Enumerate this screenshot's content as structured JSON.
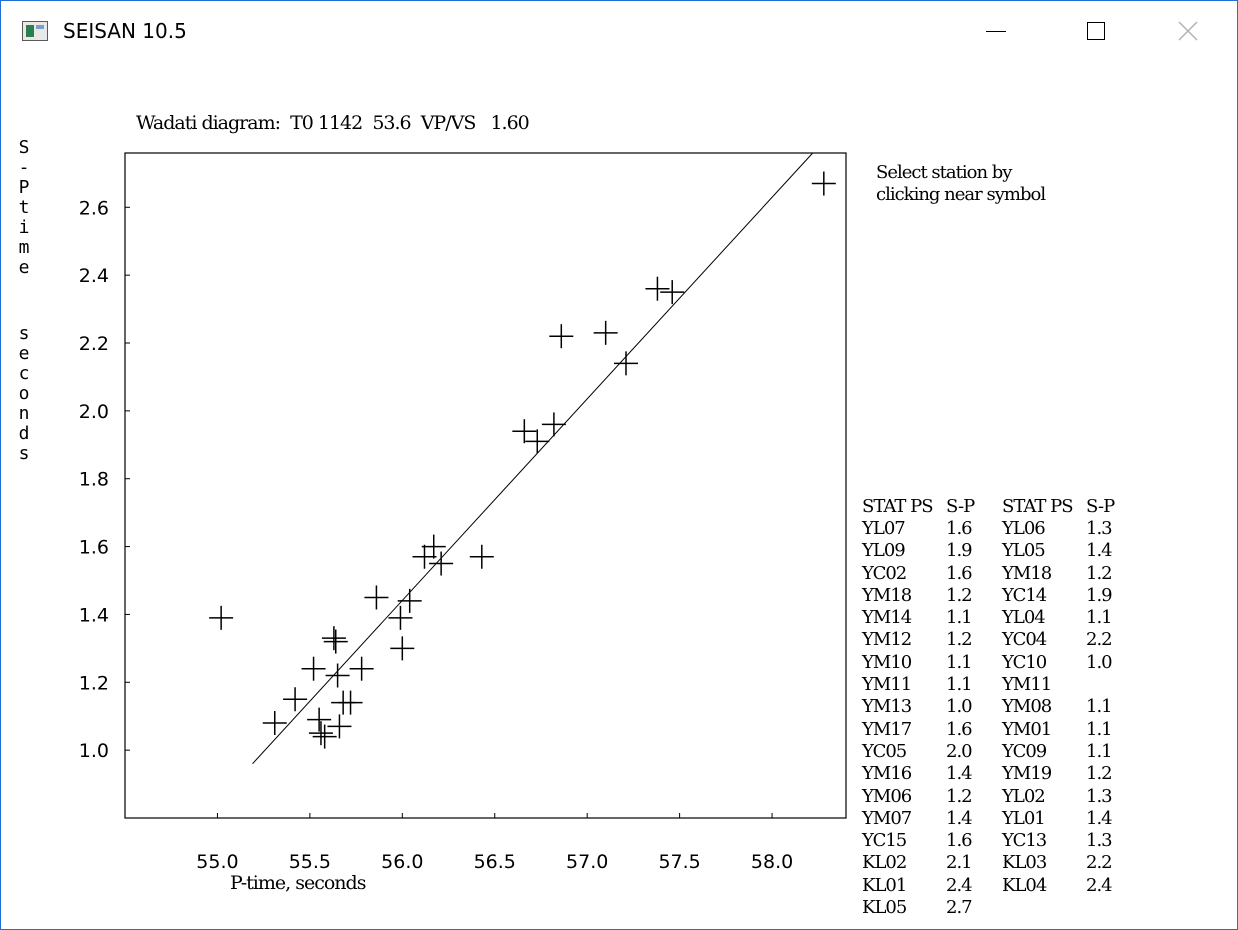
{
  "window": {
    "title": "SEISAN 10.5"
  },
  "header_text": "Wadati diagram:  T0 1142  53.6  VP/VS   1.60",
  "instruction_text": "Select station by\nclicking near symbol",
  "chart_data": {
    "type": "scatter",
    "title": "Wadati diagram:  T0 1142  53.6  VP/VS   1.60",
    "xlabel": "P-time, seconds",
    "ylabel": "S-P time seconds",
    "ylabel_parts": [
      "S-P",
      "time",
      "seconds"
    ],
    "xlim": [
      54.5,
      58.4
    ],
    "ylim": [
      0.8,
      2.76
    ],
    "xticks": [
      "55.0",
      "55.5",
      "56.0",
      "56.5",
      "57.0",
      "57.5",
      "58.0"
    ],
    "yticks": [
      "1.0",
      "1.2",
      "1.4",
      "1.6",
      "1.8",
      "2.0",
      "2.2",
      "2.4",
      "2.6"
    ],
    "grid": false,
    "fit_line": {
      "x": [
        55.19,
        58.22
      ],
      "y": [
        0.96,
        2.76
      ]
    },
    "points": [
      {
        "x": 55.02,
        "y": 1.39
      },
      {
        "x": 55.31,
        "y": 1.08
      },
      {
        "x": 55.42,
        "y": 1.15
      },
      {
        "x": 55.52,
        "y": 1.24
      },
      {
        "x": 55.55,
        "y": 1.09
      },
      {
        "x": 55.56,
        "y": 1.05
      },
      {
        "x": 55.58,
        "y": 1.04
      },
      {
        "x": 55.63,
        "y": 1.33
      },
      {
        "x": 55.64,
        "y": 1.32
      },
      {
        "x": 55.65,
        "y": 1.22
      },
      {
        "x": 55.66,
        "y": 1.07
      },
      {
        "x": 55.68,
        "y": 1.14
      },
      {
        "x": 55.72,
        "y": 1.14
      },
      {
        "x": 55.78,
        "y": 1.24
      },
      {
        "x": 55.86,
        "y": 1.45
      },
      {
        "x": 55.99,
        "y": 1.39
      },
      {
        "x": 56.0,
        "y": 1.3
      },
      {
        "x": 56.04,
        "y": 1.44
      },
      {
        "x": 56.12,
        "y": 1.57
      },
      {
        "x": 56.17,
        "y": 1.6
      },
      {
        "x": 56.21,
        "y": 1.55
      },
      {
        "x": 56.43,
        "y": 1.57
      },
      {
        "x": 56.66,
        "y": 1.94
      },
      {
        "x": 56.73,
        "y": 1.91
      },
      {
        "x": 56.82,
        "y": 1.96
      },
      {
        "x": 56.86,
        "y": 2.22
      },
      {
        "x": 57.1,
        "y": 2.23
      },
      {
        "x": 57.21,
        "y": 2.14
      },
      {
        "x": 57.38,
        "y": 2.36
      },
      {
        "x": 57.46,
        "y": 2.35
      },
      {
        "x": 58.28,
        "y": 2.67
      }
    ]
  },
  "station_table": {
    "headers": [
      "STAT PS",
      "S-P",
      "STAT PS",
      "S-P"
    ],
    "rows": [
      [
        "YL07",
        "1.6",
        "YL06",
        "1.3"
      ],
      [
        "YL09",
        "1.9",
        "YL05",
        "1.4"
      ],
      [
        "YC02",
        "1.6",
        "YM18",
        "1.2"
      ],
      [
        "YM18",
        "1.2",
        "YC14",
        "1.9"
      ],
      [
        "YM14",
        "1.1",
        "YL04",
        "1.1"
      ],
      [
        "YM12",
        "1.2",
        "YC04",
        "2.2"
      ],
      [
        "YM10",
        "1.1",
        "YC10",
        "1.0"
      ],
      [
        "YM11",
        "1.1",
        "YM11",
        ""
      ],
      [
        "YM13",
        "1.0",
        "YM08",
        "1.1"
      ],
      [
        "YM17",
        "1.6",
        "YM01",
        "1.1"
      ],
      [
        "YC05",
        "2.0",
        "YC09",
        "1.1"
      ],
      [
        "YM16",
        "1.4",
        "YM19",
        "1.2"
      ],
      [
        "YM06",
        "1.2",
        "YL02",
        "1.3"
      ],
      [
        "YM07",
        "1.4",
        "YL01",
        "1.4"
      ],
      [
        "YC15",
        "1.6",
        "YC13",
        "1.3"
      ],
      [
        "KL02",
        "2.1",
        "KL03",
        "2.2"
      ],
      [
        "KL01",
        "2.4",
        "KL04",
        "2.4"
      ],
      [
        "KL05",
        "2.7",
        "",
        ""
      ]
    ]
  }
}
